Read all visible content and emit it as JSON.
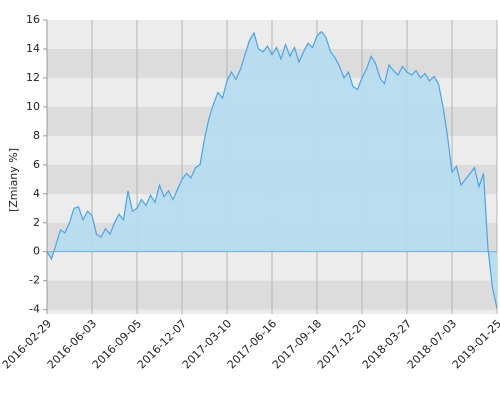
{
  "chart_data": {
    "type": "area",
    "y_label": "[Zmiany %]",
    "categories": [
      "2016-02-29",
      null,
      null,
      null,
      null,
      null,
      null,
      null,
      null,
      null,
      "2016-06-03",
      null,
      null,
      null,
      null,
      null,
      null,
      null,
      null,
      null,
      "2016-09-05",
      null,
      null,
      null,
      null,
      null,
      null,
      null,
      null,
      null,
      "2016-12-07",
      null,
      null,
      null,
      null,
      null,
      null,
      null,
      null,
      null,
      "2017-03-10",
      null,
      null,
      null,
      null,
      null,
      null,
      null,
      null,
      null,
      "2017-06-16",
      null,
      null,
      null,
      null,
      null,
      null,
      null,
      null,
      null,
      "2017-09-18",
      null,
      null,
      null,
      null,
      null,
      null,
      null,
      null,
      null,
      "2017-12-20",
      null,
      null,
      null,
      null,
      null,
      null,
      null,
      null,
      null,
      "2018-03-27",
      null,
      null,
      null,
      null,
      null,
      null,
      null,
      null,
      null,
      "2018-07-03",
      null,
      null,
      null,
      null,
      null,
      null,
      null,
      null,
      null,
      "2019-01-25"
    ],
    "values": [
      0,
      -0.5,
      0.5,
      1.5,
      1.3,
      2,
      3,
      3.1,
      2.2,
      2.8,
      2.5,
      1.2,
      1.0,
      1.6,
      1.2,
      2.0,
      2.6,
      2.2,
      4.2,
      2.8,
      3.0,
      3.6,
      3.2,
      3.9,
      3.4,
      4.6,
      3.8,
      4.2,
      3.6,
      4.3,
      5.0,
      5.4,
      5.1,
      5.8,
      6.0,
      7.8,
      9.2,
      10.2,
      11.0,
      10.6,
      11.8,
      12.4,
      11.9,
      12.6,
      13.6,
      14.6,
      15.1,
      14.0,
      13.8,
      14.2,
      13.6,
      14.1,
      13.3,
      14.3,
      13.5,
      14.1,
      13.1,
      13.8,
      14.4,
      14.1,
      14.9,
      15.2,
      14.8,
      13.8,
      13.4,
      12.8,
      12.0,
      12.4,
      11.4,
      11.2,
      12.0,
      12.6,
      13.5,
      13.0,
      12.0,
      11.6,
      12.9,
      12.5,
      12.2,
      12.8,
      12.4,
      12.2,
      12.5,
      12.0,
      12.3,
      11.8,
      12.1,
      11.6,
      10.0,
      8.0,
      5.5,
      5.9,
      4.6,
      5.0,
      5.4,
      5.8,
      4.5,
      5.4,
      0.2,
      -2.5,
      -3.9
    ],
    "color": "#4da3e6",
    "fill": "#b5ddf0",
    "ylim": [
      -4.3,
      16
    ],
    "yticks": [
      -4,
      -2,
      0,
      2,
      4,
      6,
      8,
      10,
      12,
      14,
      16
    ],
    "band_colors": [
      "#ececec",
      "#dcdcdc"
    ],
    "grid": true
  }
}
